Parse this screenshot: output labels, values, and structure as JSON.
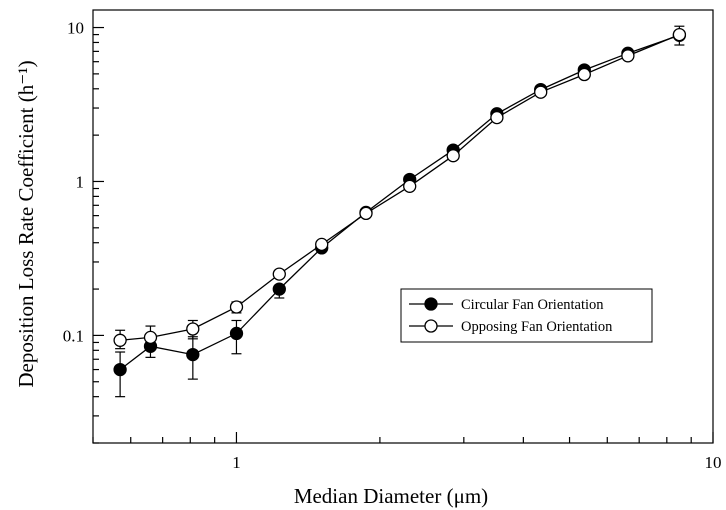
{
  "chart_data": {
    "type": "line",
    "title": "",
    "xlabel": "Median Diameter (μm)",
    "ylabel": "Deposition Loss Rate Coefficient (h⁻¹)",
    "xscale": "log",
    "yscale": "log",
    "xlim": [
      0.5,
      10
    ],
    "ylim": [
      0.02,
      13
    ],
    "xticks": [
      {
        "value": 1,
        "label": "1"
      },
      {
        "value": 10,
        "label": "10"
      }
    ],
    "yticks": [
      {
        "value": 0.1,
        "label": "0.1"
      },
      {
        "value": 1,
        "label": "1"
      },
      {
        "value": 10,
        "label": "10"
      }
    ],
    "grid": false,
    "legend_position": "center-right",
    "series": [
      {
        "name": "Circular Fan Orientation",
        "marker": "filled-circle",
        "x": [
          0.57,
          0.66,
          0.81,
          1.0,
          1.23,
          1.51,
          1.87,
          2.31,
          2.85,
          3.52,
          4.35,
          5.37,
          6.63,
          8.5
        ],
        "y": [
          0.06,
          0.085,
          0.075,
          0.103,
          0.2,
          0.37,
          0.63,
          1.03,
          1.6,
          2.75,
          3.95,
          5.3,
          6.8,
          8.9
        ],
        "error_low": [
          0.04,
          0.072,
          0.052,
          0.076,
          0.175,
          null,
          null,
          null,
          null,
          null,
          null,
          null,
          null,
          7.7
        ],
        "error_high": [
          0.078,
          0.1,
          0.098,
          0.125,
          null,
          null,
          null,
          null,
          null,
          null,
          null,
          null,
          null,
          10.2
        ]
      },
      {
        "name": "Opposing Fan Orientation",
        "marker": "open-circle",
        "x": [
          0.57,
          0.66,
          0.81,
          1.0,
          1.23,
          1.51,
          1.87,
          2.31,
          2.85,
          3.52,
          4.35,
          5.37,
          6.63,
          8.5
        ],
        "y": [
          0.093,
          0.097,
          0.11,
          0.153,
          0.25,
          0.39,
          0.62,
          0.93,
          1.47,
          2.6,
          3.8,
          4.95,
          6.55,
          9.0
        ],
        "error_low": [
          0.082,
          null,
          0.095,
          0.14,
          null,
          null,
          null,
          null,
          null,
          null,
          null,
          null,
          null,
          null
        ],
        "error_high": [
          0.108,
          0.115,
          0.125,
          0.165,
          null,
          null,
          null,
          null,
          null,
          null,
          null,
          null,
          null,
          null
        ]
      }
    ]
  }
}
